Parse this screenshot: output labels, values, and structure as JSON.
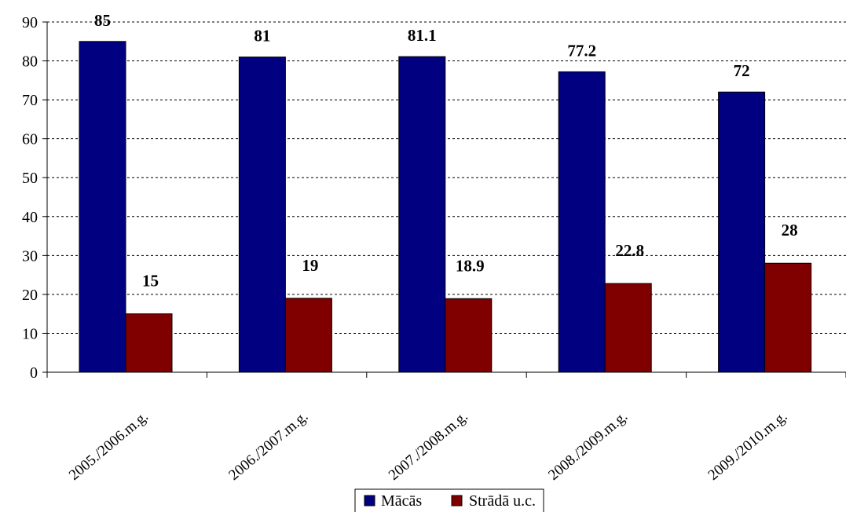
{
  "chart_data": {
    "type": "bar",
    "categories": [
      "2005./2006.m.g.",
      "2006./2007.m.g.",
      "2007./2008.m.g.",
      "2008./2009.m.g.",
      "2009./2010.m.g."
    ],
    "series": [
      {
        "name": "Mācās",
        "color": "#000080",
        "values": [
          85,
          81,
          81.1,
          77.2,
          72
        ],
        "labels": [
          "85",
          "81",
          "81.1",
          "77.2",
          "72"
        ]
      },
      {
        "name": "Strādā u.c.",
        "color": "#800000",
        "values": [
          15,
          19,
          18.9,
          22.8,
          28
        ],
        "labels": [
          "15",
          "19",
          "18.9",
          "22.8",
          "28"
        ]
      }
    ],
    "ylim": [
      0,
      90
    ],
    "yticks": [
      0,
      10,
      20,
      30,
      40,
      50,
      60,
      70,
      80,
      90
    ],
    "grid": true,
    "legend": "bottom"
  }
}
